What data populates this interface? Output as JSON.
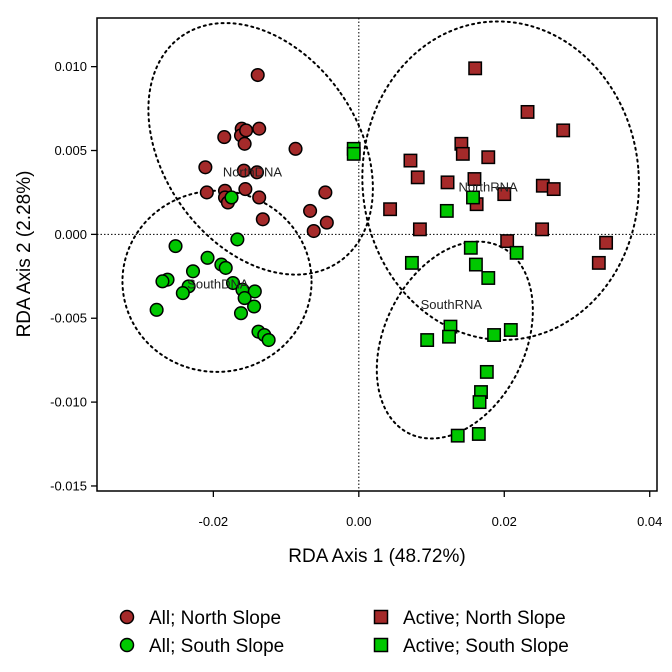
{
  "chart_data": {
    "type": "scatter",
    "xlabel": "RDA Axis 1 (48.72%)",
    "ylabel": "RDA Axis 2 (2.28%)",
    "xlim": [
      -0.036,
      0.041
    ],
    "ylim": [
      -0.0153,
      0.0129
    ],
    "x_ticks": [
      -0.02,
      0.0,
      0.02,
      0.04
    ],
    "x_tick_labels": [
      "-0.02",
      "0.00",
      "0.02",
      "0.04"
    ],
    "y_ticks": [
      -0.015,
      -0.01,
      -0.005,
      0.0,
      0.005,
      0.01
    ],
    "y_tick_labels": [
      "-0.015",
      "-0.010",
      "-0.005",
      "0.000",
      "0.005",
      "0.010"
    ],
    "reference_lines": {
      "x": 0,
      "y": 0,
      "style": "dotted"
    },
    "colors": {
      "north": "#a52a2a",
      "south": "#00c800"
    },
    "group_labels": [
      {
        "text": "NorthDNA",
        "x": -0.0187,
        "y": 0.0037
      },
      {
        "text": "NorthRNA",
        "x": 0.0137,
        "y": 0.0028
      },
      {
        "text": "SouthDNA",
        "x": -0.0236,
        "y": -0.003
      },
      {
        "text": "SouthRNA",
        "x": 0.0085,
        "y": -0.0042
      }
    ],
    "ellipses": [
      {
        "name": "NorthDNA",
        "cx": -0.0135,
        "cy": 0.0051,
        "rx": 0.0134,
        "ry": 0.0082,
        "angle": -35
      },
      {
        "name": "SouthDNA",
        "cx": -0.0195,
        "cy": -0.0028,
        "rx": 0.013,
        "ry": 0.0054,
        "angle": 0
      },
      {
        "name": "NorthRNA",
        "cx": 0.0195,
        "cy": 0.0032,
        "rx": 0.019,
        "ry": 0.0095,
        "angle": -4
      },
      {
        "name": "SouthRNA",
        "cx": 0.0132,
        "cy": -0.0063,
        "rx": 0.0143,
        "ry": 0.0042,
        "angle": -64
      }
    ],
    "series": [
      {
        "name": "All; North Slope",
        "marker": "circle",
        "color": "#a52a2a",
        "x": [
          -0.0139,
          -0.0161,
          -0.0162,
          -0.0137,
          -0.0185,
          -0.0155,
          -0.0157,
          -0.0158,
          -0.014,
          -0.0087,
          -0.0156,
          -0.0211,
          -0.0184,
          -0.0209,
          -0.0184,
          -0.018,
          -0.0137,
          -0.0046,
          -0.0067,
          -0.0044,
          -0.0132,
          -0.0062
        ],
        "y": [
          0.0095,
          0.0063,
          0.0059,
          0.0063,
          0.0058,
          0.0062,
          0.0054,
          0.0038,
          0.0037,
          0.0051,
          0.0027,
          0.004,
          0.0026,
          0.0025,
          0.0022,
          0.0019,
          0.0022,
          0.0025,
          0.0014,
          0.0007,
          0.0009,
          0.0002
        ]
      },
      {
        "name": "All; South Slope",
        "marker": "circle",
        "color": "#00c800",
        "x": [
          -0.0175,
          -0.0167,
          -0.0252,
          -0.0208,
          -0.0189,
          -0.0228,
          -0.0183,
          -0.0263,
          -0.0234,
          -0.0173,
          -0.027,
          -0.016,
          -0.0242,
          -0.0143,
          -0.0157,
          -0.0278,
          -0.0144,
          -0.0162,
          -0.0138,
          -0.013,
          -0.0124
        ],
        "y": [
          0.0022,
          -0.0003,
          -0.0007,
          -0.0014,
          -0.0018,
          -0.0022,
          -0.002,
          -0.0027,
          -0.0031,
          -0.0029,
          -0.0028,
          -0.0033,
          -0.0035,
          -0.0034,
          -0.0038,
          -0.0045,
          -0.0043,
          -0.0047,
          -0.0058,
          -0.006,
          -0.0063
        ]
      },
      {
        "name": "Active; North Slope",
        "marker": "square",
        "color": "#a52a2a",
        "x": [
          0.016,
          0.0232,
          0.0281,
          0.0141,
          0.0143,
          0.0178,
          0.0071,
          0.0159,
          0.0122,
          0.0081,
          0.0253,
          0.0268,
          0.02,
          0.0043,
          0.0162,
          0.0084,
          0.0252,
          0.0204,
          0.034,
          0.033
        ],
        "y": [
          0.0099,
          0.0073,
          0.0062,
          0.0054,
          0.0048,
          0.0046,
          0.0044,
          0.0033,
          0.0031,
          0.0034,
          0.0029,
          0.0027,
          0.0024,
          0.0015,
          0.0018,
          0.0003,
          0.0003,
          -0.0004,
          -0.0005,
          -0.0017
        ]
      },
      {
        "name": "Active; South Slope",
        "marker": "square",
        "color": "#00c800",
        "x": [
          -0.0007,
          -0.0007,
          0.0157,
          0.0121,
          0.0154,
          0.0073,
          0.0217,
          0.0161,
          0.0178,
          0.0126,
          0.0124,
          0.0209,
          0.0186,
          0.0094,
          0.0176,
          0.0168,
          0.0166,
          0.0165,
          0.0136
        ],
        "y": [
          0.0051,
          0.0048,
          0.0022,
          0.0014,
          -0.0008,
          -0.0017,
          -0.0011,
          -0.0018,
          -0.0026,
          -0.0055,
          -0.0061,
          -0.0057,
          -0.006,
          -0.0063,
          -0.0082,
          -0.0094,
          -0.01,
          -0.0119,
          -0.012
        ]
      }
    ],
    "legend": {
      "placement": "bottom",
      "items": [
        {
          "label": "All; North Slope",
          "marker": "circle",
          "color": "#a52a2a"
        },
        {
          "label": "Active; North Slope",
          "marker": "square",
          "color": "#a52a2a"
        },
        {
          "label": "All; South Slope",
          "marker": "circle",
          "color": "#00c800"
        },
        {
          "label": "Active; South Slope",
          "marker": "square",
          "color": "#00c800"
        }
      ]
    }
  }
}
